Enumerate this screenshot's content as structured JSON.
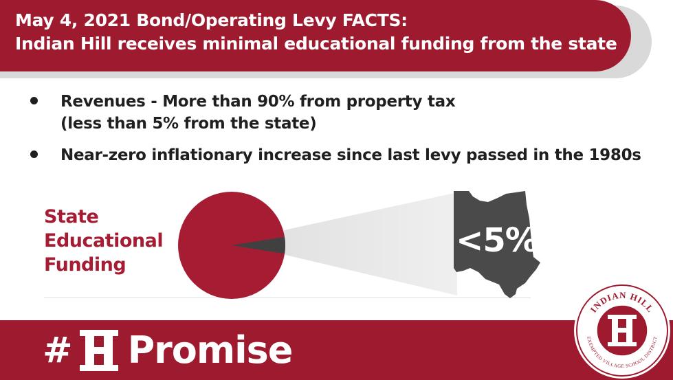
{
  "header": {
    "title_line1": "May 4, 2021 Bond/Operating Levy FACTS:",
    "title_line2": "Indian Hill receives minimal educational funding from the state"
  },
  "bullets": [
    {
      "line1": "Revenues - More than 90% from property tax",
      "line2": "(less than 5% from the state)"
    },
    {
      "line1": "Near-zero inflationary increase since last levy passed in the 1980s"
    }
  ],
  "graphic": {
    "label_line1": "State",
    "label_line2": "Educational",
    "label_line3": "Funding",
    "ohio_value": "<5%",
    "state_share_fraction": 0.05,
    "pie_color": "#a61c33",
    "slice_color": "#404040",
    "ohio_color": "#4a4a4a",
    "icon": "ohio-map-icon"
  },
  "footer": {
    "hash": "#",
    "ih_icon": "ih-logo-icon",
    "word": "Promise"
  },
  "seal": {
    "top_text": "INDIAN HILL",
    "bottom_text": "EXEMPTED VILLAGE SCHOOL DISTRICT"
  },
  "colors": {
    "brand_red": "#9e1b2f",
    "accent_red": "#a61c33",
    "text_dark": "#1f1f1f"
  }
}
